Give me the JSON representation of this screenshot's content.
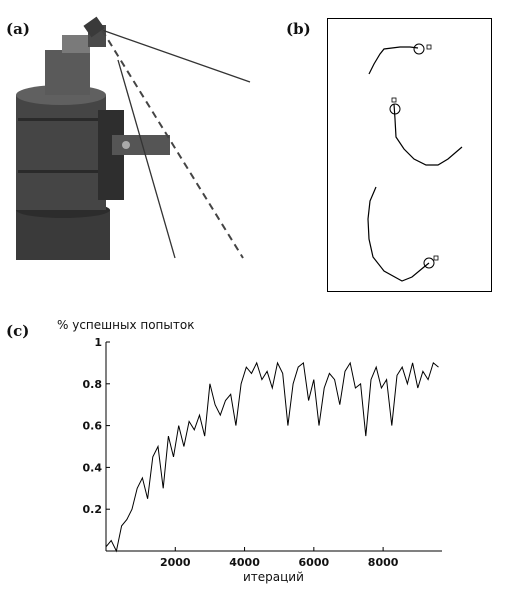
{
  "panels": {
    "a": "(a)",
    "b": "(b)",
    "c": "(c)"
  },
  "chart_data": {
    "type": "line",
    "ylabel": "% успешных попыток",
    "xlabel": "итераций",
    "xlim": [
      0,
      9700
    ],
    "ylim": [
      0,
      1
    ],
    "xticks": [
      2000,
      4000,
      6000,
      8000
    ],
    "xtick_labels": [
      "2000",
      "4000",
      "6000",
      "8000"
    ],
    "yticks": [
      0.2,
      0.4,
      0.6,
      0.8,
      1.0
    ],
    "ytick_labels": [
      "0.2",
      "0.4",
      "0.6",
      "0.8",
      "1"
    ],
    "grid": false,
    "series": [
      {
        "x": [
          0,
          150,
          300,
          450,
          600,
          750,
          900,
          1050,
          1200,
          1350,
          1500,
          1650,
          1800,
          1950,
          2100,
          2250,
          2400,
          2550,
          2700,
          2850,
          3000,
          3150,
          3300,
          3450,
          3600,
          3750,
          3900,
          4050,
          4200,
          4350,
          4500,
          4650,
          4800,
          4950,
          5100,
          5250,
          5400,
          5550,
          5700,
          5850,
          6000,
          6150,
          6300,
          6450,
          6600,
          6750,
          6900,
          7050,
          7200,
          7350,
          7500,
          7650,
          7800,
          7950,
          8100,
          8250,
          8400,
          8550,
          8700,
          8850,
          9000,
          9150,
          9300,
          9450,
          9600
        ],
        "values": [
          0.02,
          0.05,
          0.0,
          0.12,
          0.15,
          0.2,
          0.3,
          0.35,
          0.25,
          0.45,
          0.5,
          0.3,
          0.55,
          0.45,
          0.6,
          0.5,
          0.62,
          0.58,
          0.65,
          0.55,
          0.8,
          0.7,
          0.65,
          0.72,
          0.75,
          0.6,
          0.8,
          0.88,
          0.85,
          0.9,
          0.82,
          0.86,
          0.78,
          0.9,
          0.85,
          0.6,
          0.8,
          0.88,
          0.9,
          0.72,
          0.82,
          0.6,
          0.78,
          0.85,
          0.82,
          0.7,
          0.86,
          0.9,
          0.78,
          0.8,
          0.55,
          0.82,
          0.88,
          0.78,
          0.82,
          0.6,
          0.84,
          0.88,
          0.8,
          0.9,
          0.78,
          0.86,
          0.82,
          0.9,
          0.88
        ]
      }
    ]
  }
}
